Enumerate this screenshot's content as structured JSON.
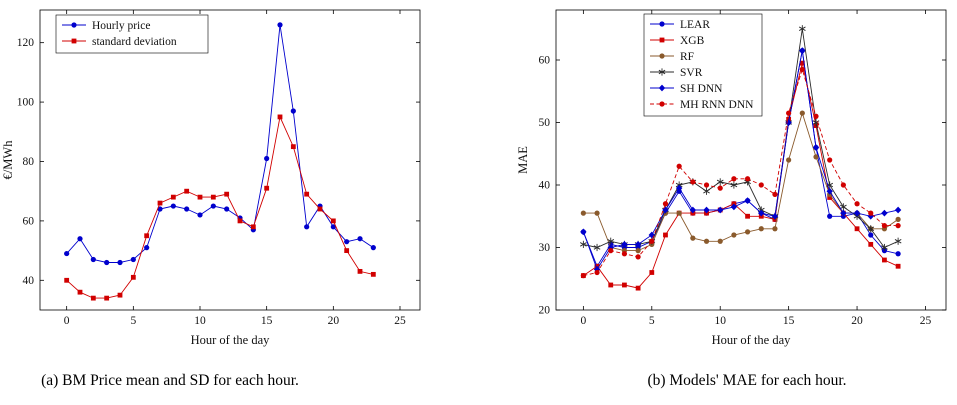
{
  "chart_data": [
    {
      "type": "line",
      "caption": "(a) BM Price mean and SD for each hour.",
      "xlabel": "Hour of the day",
      "ylabel": "€/MWh",
      "xlim": [
        -2,
        26.5
      ],
      "ylim": [
        30,
        131
      ],
      "xticks": [
        0,
        5,
        10,
        15,
        20,
        25
      ],
      "yticks": [
        40,
        60,
        80,
        100,
        120
      ],
      "grid": false,
      "legend_pos": "north west",
      "x": [
        0,
        1,
        2,
        3,
        4,
        5,
        6,
        7,
        8,
        9,
        10,
        11,
        12,
        13,
        14,
        15,
        16,
        17,
        18,
        19,
        20,
        21,
        22,
        23
      ],
      "series": [
        {
          "name": "Hourly price",
          "color": "#0000cd",
          "marker": "circle",
          "dashed": false,
          "values": [
            49,
            54,
            47,
            46,
            46,
            47,
            51,
            64,
            65,
            64,
            62,
            65,
            64,
            61,
            57,
            81,
            126,
            97,
            58,
            65,
            58,
            53,
            54,
            51
          ]
        },
        {
          "name": "standard deviation",
          "color": "#d10000",
          "marker": "square",
          "dashed": false,
          "values": [
            40,
            36,
            34,
            34,
            35,
            41,
            55,
            66,
            68,
            70,
            68,
            68,
            69,
            60,
            58,
            71,
            95,
            85,
            69,
            64,
            60,
            50,
            43,
            42
          ]
        }
      ]
    },
    {
      "type": "line",
      "caption": "(b) Models' MAE for each hour.",
      "xlabel": "Hour of the day",
      "ylabel": "MAE",
      "xlim": [
        -2,
        26.5
      ],
      "ylim": [
        20,
        68
      ],
      "xticks": [
        0,
        5,
        10,
        15,
        20,
        25
      ],
      "yticks": [
        20,
        30,
        40,
        50,
        60
      ],
      "grid": false,
      "legend_pos": "north",
      "x": [
        0,
        1,
        2,
        3,
        4,
        5,
        6,
        7,
        8,
        9,
        10,
        11,
        12,
        13,
        14,
        15,
        16,
        17,
        18,
        19,
        20,
        21,
        22,
        23
      ],
      "series": [
        {
          "name": "LEAR",
          "color": "#0000cd",
          "marker": "circle",
          "dashed": false,
          "values": [
            32.5,
            27,
            30.5,
            30,
            30,
            31,
            35.5,
            39,
            35.5,
            35.5,
            36,
            37,
            37.5,
            35.5,
            34.5,
            50,
            61.5,
            46,
            35,
            35,
            35.5,
            32,
            29.5,
            29
          ]
        },
        {
          "name": "XGB",
          "color": "#d10000",
          "marker": "square",
          "dashed": false,
          "values": [
            25.5,
            27,
            24,
            24,
            23.5,
            26,
            32,
            35.5,
            35.5,
            35.5,
            36,
            37,
            35,
            35,
            34.5,
            50.5,
            59.5,
            49.5,
            38,
            35.5,
            33,
            30.5,
            28,
            27
          ]
        },
        {
          "name": "RF",
          "color": "#8a5a2c",
          "marker": "circle",
          "dashed": false,
          "values": [
            35.5,
            35.5,
            30,
            29.5,
            29.5,
            30.5,
            35.5,
            35.5,
            31.5,
            31,
            31,
            32,
            32.5,
            33,
            33,
            44,
            51.5,
            44.5,
            38.5,
            35.5,
            35.5,
            33,
            33,
            34.5
          ]
        },
        {
          "name": "SVR",
          "color": "#2b2b2b",
          "marker": "star",
          "dashed": false,
          "values": [
            30.5,
            30,
            31,
            30.5,
            30.5,
            31,
            36,
            40,
            40.5,
            39,
            40.5,
            40,
            40.5,
            36,
            35,
            50,
            65,
            50,
            40,
            36.5,
            35,
            33,
            30,
            31
          ]
        },
        {
          "name": "SH DNN",
          "color": "#0000cd",
          "marker": "diamond",
          "dashed": false,
          "values": [
            32.5,
            26.5,
            30,
            30.5,
            30.5,
            32,
            36,
            39.5,
            36,
            36,
            36,
            36.5,
            37.5,
            35.5,
            35,
            50,
            61.5,
            46,
            39,
            35.5,
            35.5,
            35,
            35.5,
            36
          ]
        },
        {
          "name": "MH RNN DNN",
          "color": "#d10000",
          "marker": "circle",
          "dashed": true,
          "values": [
            25.5,
            26,
            29.5,
            29,
            28.5,
            31,
            37,
            43,
            40.5,
            40,
            39.5,
            41,
            41,
            40,
            38.5,
            51.5,
            58.5,
            51,
            44,
            40,
            37,
            35.5,
            33.5,
            33.5
          ]
        }
      ]
    }
  ]
}
